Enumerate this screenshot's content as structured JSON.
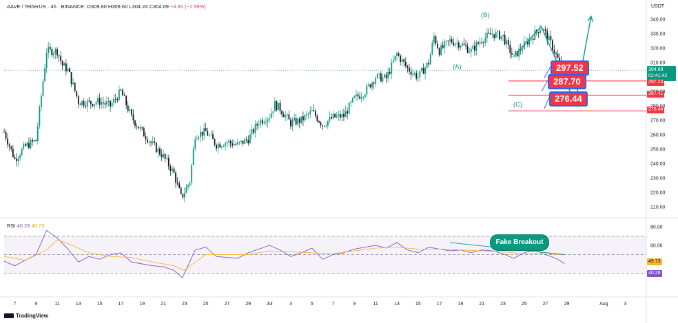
{
  "header": {
    "symbol": "AAVE / TetherUS · 4h · BINANCE",
    "open": "O309.60",
    "high": "H309.60",
    "low": "L304.24",
    "close": "C304.69",
    "change": "−4.91 (−1.59%)"
  },
  "unit": "USDT",
  "price_tags": {
    "last_price": "304.69",
    "countdown": "02:41:42",
    "level_297": "297.23",
    "level_287": "287.41",
    "level_276": "276.44",
    "rsi_ma": "49.73",
    "rsi": "40.28"
  },
  "levels": {
    "box1": "297.52",
    "box2": "287.70",
    "box3": "276.44"
  },
  "waves": {
    "a": "(A)",
    "b": "(B)",
    "c": "(C)"
  },
  "annotation": "Fake Breakout",
  "rsi_header": {
    "label": "RSI",
    "value": "40.28",
    "ma": "49.73"
  },
  "brand": "TradingView",
  "colors": {
    "up": "#089981",
    "down": "#131722",
    "level": "#f23645",
    "rsi_line": "#7e57c2",
    "rsi_ma": "#f7b733",
    "wave": "#089981"
  },
  "chart_data": [
    {
      "type": "candlestick",
      "ylim": [
        205,
        345
      ],
      "y_ticks": [
        "340.00",
        "330.00",
        "320.00",
        "310.00",
        "300.00",
        "290.00",
        "280.00",
        "270.00",
        "260.00",
        "250.00",
        "240.00",
        "230.00",
        "220.00",
        "210.00"
      ],
      "x_ticks": [
        "7",
        "9",
        "11",
        "13",
        "15",
        "17",
        "19",
        "21",
        "23",
        "25",
        "27",
        "29",
        "Jul",
        "3",
        "5",
        "7",
        "9",
        "11",
        "13",
        "15",
        "17",
        "19",
        "21",
        "23",
        "25",
        "27",
        "29",
        "Aug",
        "3"
      ],
      "trend": [
        {
          "day": 6,
          "price": 262
        },
        {
          "day": 7,
          "price": 243
        },
        {
          "day": 8,
          "price": 252
        },
        {
          "day": 9,
          "price": 256
        },
        {
          "day": 10,
          "price": 318
        },
        {
          "day": 11,
          "price": 318
        },
        {
          "day": 11.5,
          "price": 308
        },
        {
          "day": 12,
          "price": 305
        },
        {
          "day": 13,
          "price": 283
        },
        {
          "day": 14,
          "price": 282
        },
        {
          "day": 15,
          "price": 283
        },
        {
          "day": 16,
          "price": 280
        },
        {
          "day": 17,
          "price": 290
        },
        {
          "day": 18,
          "price": 272
        },
        {
          "day": 19,
          "price": 262
        },
        {
          "day": 20,
          "price": 253
        },
        {
          "day": 21,
          "price": 245
        },
        {
          "day": 22,
          "price": 233
        },
        {
          "day": 22.7,
          "price": 216
        },
        {
          "day": 23.5,
          "price": 228
        },
        {
          "day": 24,
          "price": 260
        },
        {
          "day": 25,
          "price": 262
        },
        {
          "day": 26,
          "price": 253
        },
        {
          "day": 27,
          "price": 255
        },
        {
          "day": 28,
          "price": 253
        },
        {
          "day": 29,
          "price": 257
        },
        {
          "day": 30,
          "price": 269
        },
        {
          "day": 31,
          "price": 273
        },
        {
          "day": 31.5,
          "price": 281
        },
        {
          "day": 32,
          "price": 278
        },
        {
          "day": 33,
          "price": 268
        },
        {
          "day": 34,
          "price": 270
        },
        {
          "day": 35,
          "price": 276
        },
        {
          "day": 36,
          "price": 267
        },
        {
          "day": 37,
          "price": 272
        },
        {
          "day": 38,
          "price": 273
        },
        {
          "day": 39,
          "price": 285
        },
        {
          "day": 40,
          "price": 290
        },
        {
          "day": 41,
          "price": 300
        },
        {
          "day": 42,
          "price": 299
        },
        {
          "day": 43,
          "price": 316
        },
        {
          "day": 44,
          "price": 306
        },
        {
          "day": 45,
          "price": 300
        },
        {
          "day": 46,
          "price": 310
        },
        {
          "day": 46.5,
          "price": 328
        },
        {
          "day": 47,
          "price": 318
        },
        {
          "day": 48,
          "price": 325
        },
        {
          "day": 49,
          "price": 323
        },
        {
          "day": 50,
          "price": 318
        },
        {
          "day": 51,
          "price": 326
        },
        {
          "day": 52,
          "price": 330
        },
        {
          "day": 53,
          "price": 328
        },
        {
          "day": 53.5,
          "price": 320
        },
        {
          "day": 54,
          "price": 314
        },
        {
          "day": 55,
          "price": 322
        },
        {
          "day": 56,
          "price": 330
        },
        {
          "day": 56.6,
          "price": 335
        },
        {
          "day": 57,
          "price": 330
        },
        {
          "day": 57.6,
          "price": 322
        },
        {
          "day": 58.3,
          "price": 310
        },
        {
          "day": 58.8,
          "price": 304.69
        }
      ],
      "projection": [
        {
          "day": 54,
          "price": 314
        },
        {
          "day": 56.6,
          "price": 335
        },
        {
          "day": 59.8,
          "price": 282
        },
        {
          "day": 61.3,
          "price": 342
        }
      ],
      "levels": [
        297.23,
        287.41,
        276.44
      ]
    },
    {
      "type": "line",
      "name": "RSI",
      "ylim": [
        20,
        90
      ],
      "y_ticks": [
        "80.00",
        "60.00"
      ],
      "bands": [
        70,
        50,
        30
      ],
      "series": [
        {
          "name": "RSI",
          "points": [
            {
              "day": 6,
              "value": 43
            },
            {
              "day": 7,
              "value": 38
            },
            {
              "day": 8,
              "value": 44
            },
            {
              "day": 9,
              "value": 50
            },
            {
              "day": 10,
              "value": 76
            },
            {
              "day": 11,
              "value": 68
            },
            {
              "day": 12,
              "value": 56
            },
            {
              "day": 13,
              "value": 42
            },
            {
              "day": 14,
              "value": 48
            },
            {
              "day": 15,
              "value": 45
            },
            {
              "day": 16,
              "value": 50
            },
            {
              "day": 17,
              "value": 52
            },
            {
              "day": 18,
              "value": 42
            },
            {
              "day": 19,
              "value": 40
            },
            {
              "day": 20,
              "value": 38
            },
            {
              "day": 21,
              "value": 37
            },
            {
              "day": 22,
              "value": 33
            },
            {
              "day": 22.8,
              "value": 25
            },
            {
              "day": 24,
              "value": 55
            },
            {
              "day": 25,
              "value": 58
            },
            {
              "day": 26,
              "value": 48
            },
            {
              "day": 27,
              "value": 47
            },
            {
              "day": 28,
              "value": 46
            },
            {
              "day": 29,
              "value": 52
            },
            {
              "day": 30,
              "value": 56
            },
            {
              "day": 31,
              "value": 60
            },
            {
              "day": 32,
              "value": 55
            },
            {
              "day": 33,
              "value": 48
            },
            {
              "day": 34,
              "value": 52
            },
            {
              "day": 35,
              "value": 57
            },
            {
              "day": 36,
              "value": 45
            },
            {
              "day": 37,
              "value": 50
            },
            {
              "day": 38,
              "value": 52
            },
            {
              "day": 39,
              "value": 56
            },
            {
              "day": 40,
              "value": 58
            },
            {
              "day": 41,
              "value": 60
            },
            {
              "day": 42,
              "value": 57
            },
            {
              "day": 43,
              "value": 63
            },
            {
              "day": 44,
              "value": 55
            },
            {
              "day": 45,
              "value": 52
            },
            {
              "day": 46,
              "value": 58
            },
            {
              "day": 47,
              "value": 56
            },
            {
              "day": 48,
              "value": 54
            },
            {
              "day": 49,
              "value": 55
            },
            {
              "day": 50,
              "value": 52
            },
            {
              "day": 51,
              "value": 55
            },
            {
              "day": 52,
              "value": 54
            },
            {
              "day": 53,
              "value": 51
            },
            {
              "day": 54,
              "value": 46
            },
            {
              "day": 55,
              "value": 52
            },
            {
              "day": 56,
              "value": 55
            },
            {
              "day": 57,
              "value": 50
            },
            {
              "day": 58,
              "value": 46
            },
            {
              "day": 58.8,
              "value": 40.28
            }
          ]
        },
        {
          "name": "MA",
          "points": [
            {
              "day": 6,
              "value": 48
            },
            {
              "day": 8,
              "value": 44
            },
            {
              "day": 10,
              "value": 55
            },
            {
              "day": 11,
              "value": 66
            },
            {
              "day": 12,
              "value": 62
            },
            {
              "day": 14,
              "value": 52
            },
            {
              "day": 16,
              "value": 48
            },
            {
              "day": 18,
              "value": 47
            },
            {
              "day": 20,
              "value": 42
            },
            {
              "day": 22,
              "value": 38
            },
            {
              "day": 23,
              "value": 33
            },
            {
              "day": 24,
              "value": 42
            },
            {
              "day": 25,
              "value": 50
            },
            {
              "day": 27,
              "value": 50
            },
            {
              "day": 29,
              "value": 50
            },
            {
              "day": 31,
              "value": 54
            },
            {
              "day": 33,
              "value": 53
            },
            {
              "day": 35,
              "value": 52
            },
            {
              "day": 37,
              "value": 51
            },
            {
              "day": 39,
              "value": 54
            },
            {
              "day": 41,
              "value": 57
            },
            {
              "day": 43,
              "value": 58
            },
            {
              "day": 45,
              "value": 56
            },
            {
              "day": 47,
              "value": 56
            },
            {
              "day": 49,
              "value": 55
            },
            {
              "day": 51,
              "value": 54
            },
            {
              "day": 53,
              "value": 53
            },
            {
              "day": 55,
              "value": 51
            },
            {
              "day": 57,
              "value": 51
            },
            {
              "day": 58.8,
              "value": 49.73
            }
          ]
        }
      ],
      "trendline": [
        {
          "day": 48,
          "value": 63
        },
        {
          "day": 58.8,
          "value": 50
        }
      ]
    }
  ]
}
